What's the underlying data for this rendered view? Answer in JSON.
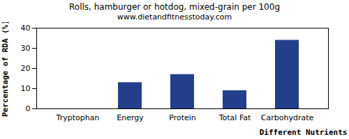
{
  "chart_data": {
    "type": "bar",
    "title": "Rolls, hamburger or hotdog, mixed-grain per 100g",
    "subtitle": "www.dietandfitnesstoday.com",
    "x_label": "Different Nutrients",
    "y_label": "Percentage of RDA (%)",
    "categories": [
      "Tryptophan",
      "Energy",
      "Protein",
      "Total Fat",
      "Carbohydrate"
    ],
    "values": [
      0,
      13,
      17,
      9,
      34
    ],
    "color": "#233f8c",
    "ylim": [
      0,
      40
    ],
    "yticks": [
      0,
      10,
      20,
      30,
      40
    ],
    "grid": false
  }
}
